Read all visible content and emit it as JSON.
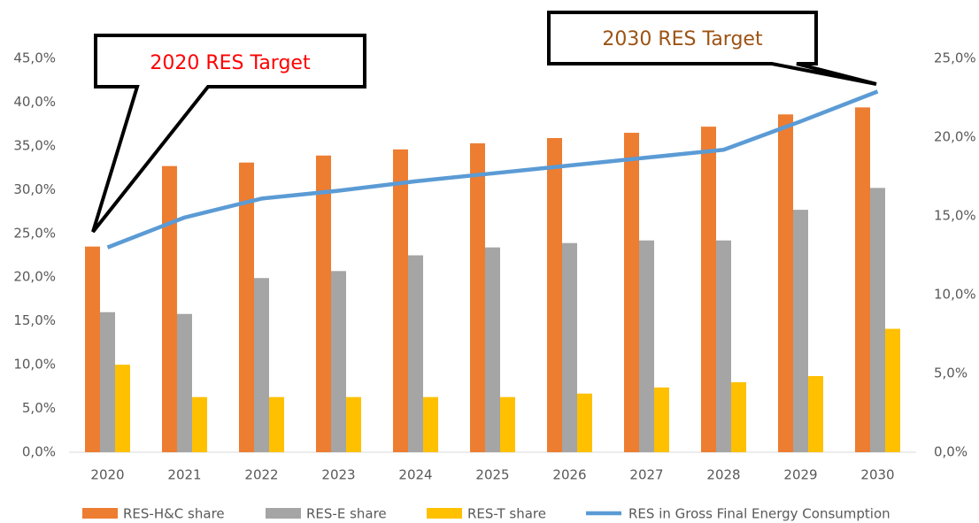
{
  "chart_data": {
    "type": "bar",
    "categories": [
      "2020",
      "2021",
      "2022",
      "2023",
      "2024",
      "2025",
      "2026",
      "2027",
      "2028",
      "2029",
      "2030"
    ],
    "series": [
      {
        "name": "RES-H&C share",
        "color": "#ed7d31",
        "values": [
          23.5,
          32.7,
          33.1,
          33.9,
          34.6,
          35.3,
          35.9,
          36.5,
          37.2,
          38.6,
          39.4
        ]
      },
      {
        "name": "RES-E share",
        "color": "#a5a5a5",
        "values": [
          16.0,
          15.8,
          19.9,
          20.7,
          22.5,
          23.4,
          23.9,
          24.2,
          24.2,
          27.7,
          30.2
        ]
      },
      {
        "name": "RES-T share",
        "color": "#ffc000",
        "values": [
          10.0,
          6.3,
          6.3,
          6.3,
          6.3,
          6.3,
          6.7,
          7.4,
          8.0,
          8.7,
          14.1
        ]
      },
      {
        "name": "RES in Gross Final Energy Consumption",
        "color": "#5b9bd5",
        "type": "line",
        "axis": "y2",
        "values": [
          13.0,
          14.9,
          16.1,
          16.6,
          17.2,
          17.7,
          18.2,
          18.7,
          19.2,
          21.0,
          22.9
        ]
      }
    ],
    "ylim": [
      0,
      45
    ],
    "yticks": [
      {
        "value": 0,
        "label": "0,0%"
      },
      {
        "value": 5,
        "label": "5,0%"
      },
      {
        "value": 10,
        "label": "10,0%"
      },
      {
        "value": 15,
        "label": "15,0%"
      },
      {
        "value": 20,
        "label": "20,0%"
      },
      {
        "value": 25,
        "label": "25,0%"
      },
      {
        "value": 30,
        "label": "30,0%"
      },
      {
        "value": 35,
        "label": "35,0%"
      },
      {
        "value": 40,
        "label": "40,0%"
      },
      {
        "value": 45,
        "label": "45,0%"
      }
    ],
    "y2lim": [
      0,
      25
    ],
    "y2ticks": [
      {
        "value": 0,
        "label": "0,0%"
      },
      {
        "value": 5,
        "label": "5,0%"
      },
      {
        "value": 10,
        "label": "10,0%"
      },
      {
        "value": 15,
        "label": "15,0%"
      },
      {
        "value": 20,
        "label": "20,0%"
      },
      {
        "value": 25,
        "label": "25,0%"
      }
    ],
    "annotations": [
      {
        "text": "2020 RES Target",
        "color": "#ff0000"
      },
      {
        "text": "2030 RES Target",
        "color": "#9c5314"
      }
    ],
    "grid": false,
    "legend": "bottom"
  }
}
